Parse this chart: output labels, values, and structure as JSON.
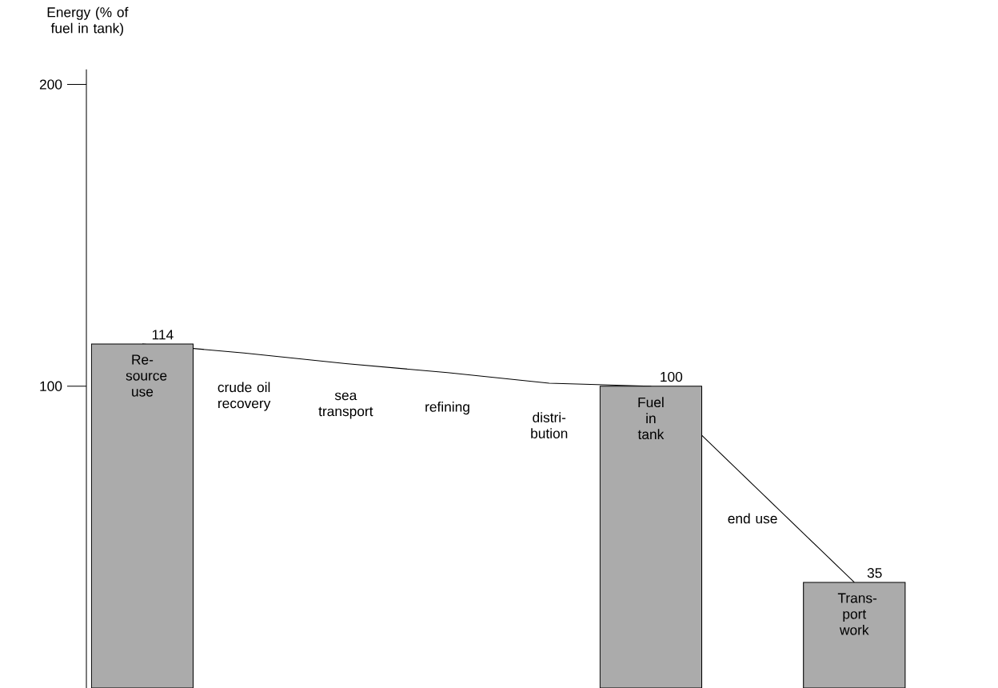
{
  "chart_data": {
    "type": "bar",
    "ylabel": "Energy (% of fuel in tank)",
    "categories": [
      "Re-source use",
      "crude oil recovery",
      "sea transport",
      "refining",
      "distri-bution",
      "Fuel in tank",
      "end use",
      "Trans-port work"
    ],
    "ylim": [
      0,
      205
    ],
    "yticks": [
      100,
      200
    ],
    "series": [
      {
        "color": "#ababab",
        "values": [
          114,
          null,
          null,
          null,
          null,
          100,
          null,
          35
        ],
        "value_labels": [
          "114",
          null,
          null,
          null,
          null,
          "100",
          null,
          "35"
        ]
      },
      {
        "type": "line",
        "color": "#000000",
        "values": [
          114,
          111,
          107.5,
          104.5,
          101,
          100,
          67.5,
          35
        ]
      }
    ]
  }
}
